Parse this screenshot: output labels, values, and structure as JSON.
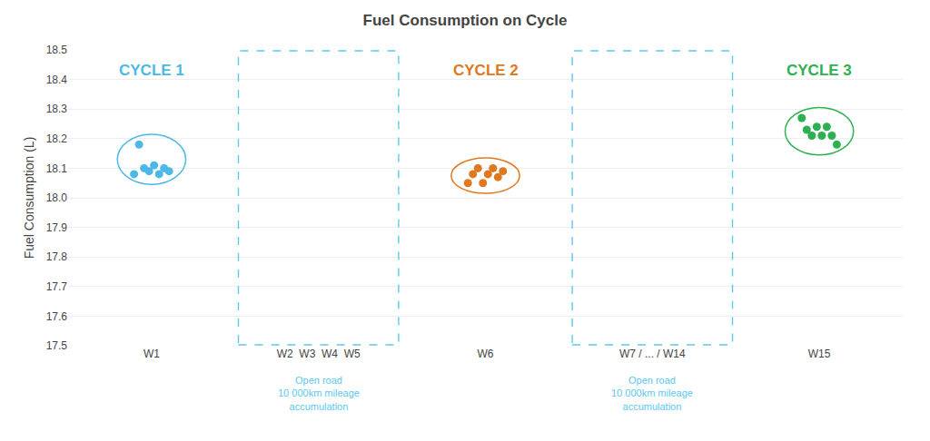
{
  "chart_data": {
    "type": "scatter",
    "title": "Fuel Consumption on Cycle",
    "y_label": "Fuel Consumption (L)",
    "categories": [
      "W1",
      "W2  W3  W4  W5",
      "W6",
      "W7 / ... / W14",
      "W15"
    ],
    "series": [
      {
        "name": "CYCLE 1",
        "color": "#4db8e8",
        "x": [
          "W1",
          "W1",
          "W1",
          "W1",
          "W1",
          "W1",
          "W1",
          "W1"
        ],
        "values": [
          18.08,
          18.18,
          18.1,
          18.09,
          18.11,
          18.08,
          18.1,
          18.09
        ]
      },
      {
        "name": "CYCLE 2",
        "color": "#e07820",
        "x": [
          "W6",
          "W6",
          "W6",
          "W6",
          "W6",
          "W6",
          "W6",
          "W6"
        ],
        "values": [
          18.05,
          18.08,
          18.1,
          18.05,
          18.08,
          18.1,
          18.07,
          18.09
        ]
      },
      {
        "name": "CYCLE 3",
        "color": "#2db050",
        "x": [
          "W15",
          "W15",
          "W15",
          "W15",
          "W15",
          "W15",
          "W15",
          "W15"
        ],
        "values": [
          18.27,
          18.23,
          18.21,
          18.24,
          18.21,
          18.24,
          18.21,
          18.18
        ]
      }
    ],
    "annotations": [
      {
        "text": "Open road\n10 000km mileage\naccumulation",
        "x": "W2  W3  W4  W5",
        "color": "#5bc8f0"
      },
      {
        "text": "Open road\n10 000km mileage\naccumulation",
        "x": "W7 / ... / W14",
        "color": "#5bc8f0"
      }
    ],
    "ylim": [
      17.5,
      18.5
    ],
    "yticks": [
      17.5,
      17.6,
      17.7,
      17.8,
      17.9,
      {
        "value": 18,
        "label": "18.0"
      },
      18.1,
      18.2,
      18.3,
      18.4,
      18.5
    ],
    "grid": true
  }
}
